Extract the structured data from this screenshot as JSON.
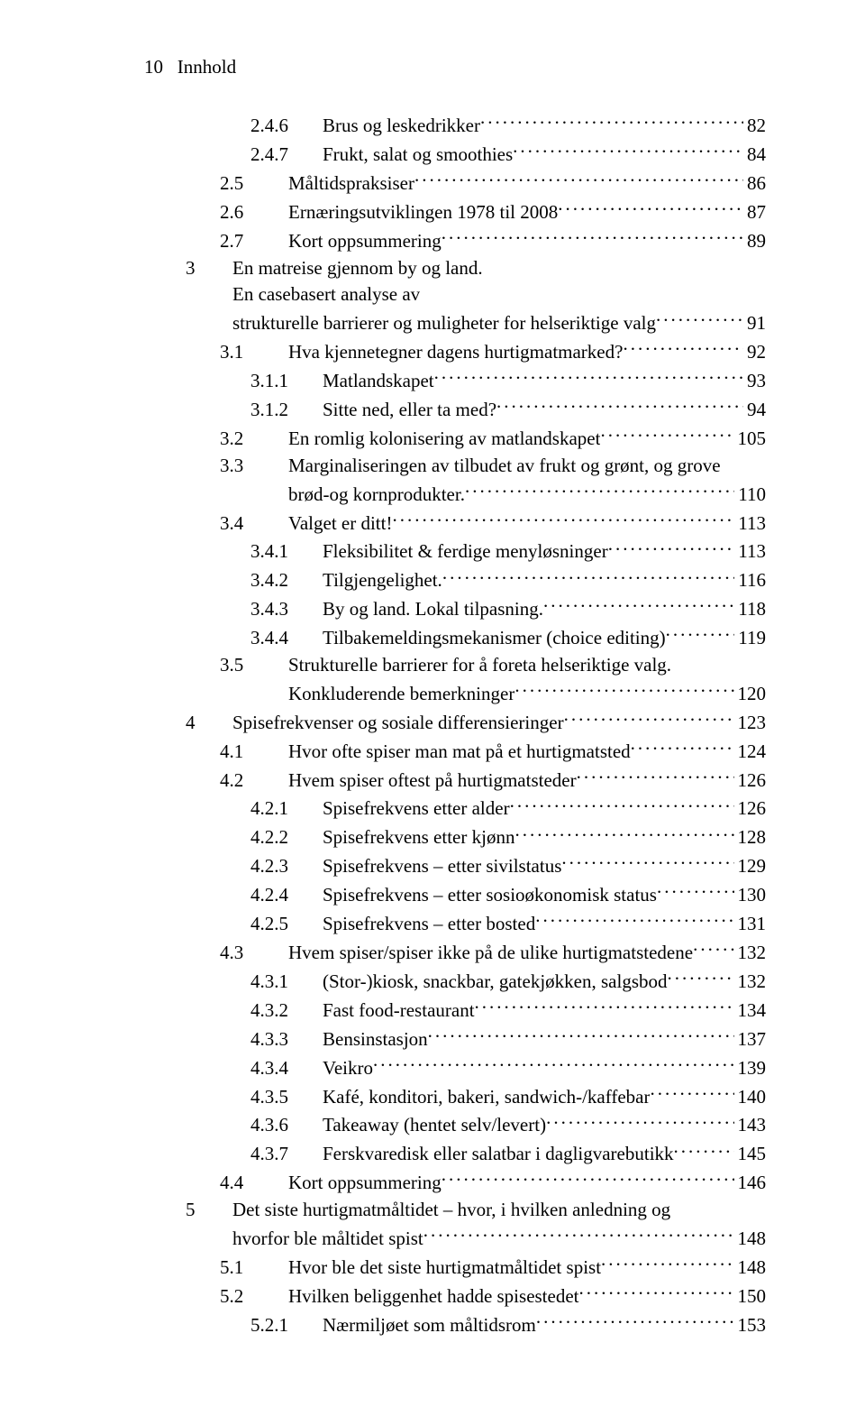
{
  "header": {
    "pageNum": "10",
    "title": "Innhold"
  },
  "indent": {
    "level1_num_pad": 46,
    "level1_num_width": 52,
    "level2_num_pad": 84,
    "level2_num_width": 76,
    "level3_num_pad": 118,
    "level3_num_width": 80
  },
  "fontsize": 21,
  "colors": {
    "text": "#000000",
    "bg": "#ffffff"
  },
  "entries": [
    {
      "lvl": 3,
      "num": "2.4.6",
      "label": "Brus og leskedrikker",
      "page": "82"
    },
    {
      "lvl": 3,
      "num": "2.4.7",
      "label": "Frukt, salat og smoothies",
      "page": "84"
    },
    {
      "lvl": 2,
      "num": "2.5",
      "label": "Måltidspraksiser",
      "page": "86"
    },
    {
      "lvl": 2,
      "num": "2.6",
      "label": "Ernæringsutviklingen 1978 til 2008",
      "page": "87"
    },
    {
      "lvl": 2,
      "num": "2.7",
      "label": "Kort oppsummering",
      "page": "89"
    },
    {
      "lvl": 1,
      "num": "3",
      "label_lines": [
        "En matreise gjennom by og land.",
        "En casebasert analyse av",
        "strukturelle barrierer og muligheter for helseriktige valg"
      ],
      "page": "91"
    },
    {
      "lvl": 2,
      "num": "3.1",
      "label": "Hva kjennetegner dagens hurtigmatmarked?",
      "page": "92"
    },
    {
      "lvl": 3,
      "num": "3.1.1",
      "label": "Matlandskapet",
      "page": "93"
    },
    {
      "lvl": 3,
      "num": "3.1.2",
      "label": "Sitte ned, eller ta med?",
      "page": "94"
    },
    {
      "lvl": 2,
      "num": "3.2",
      "label": "En romlig kolonisering av matlandskapet",
      "page": "105"
    },
    {
      "lvl": 2,
      "num": "3.3",
      "label_lines": [
        "Marginaliseringen av tilbudet av frukt og grønt, og grove",
        "brød-og kornprodukter."
      ],
      "page": "110"
    },
    {
      "lvl": 2,
      "num": "3.4",
      "label": "Valget er ditt!",
      "page": "113"
    },
    {
      "lvl": 3,
      "num": "3.4.1",
      "label": "Fleksibilitet & ferdige menyløsninger",
      "page": "113"
    },
    {
      "lvl": 3,
      "num": "3.4.2",
      "label": "Tilgjengelighet.",
      "page": "116"
    },
    {
      "lvl": 3,
      "num": "3.4.3",
      "label": "By og land. Lokal tilpasning.",
      "page": "118"
    },
    {
      "lvl": 3,
      "num": "3.4.4",
      "label": "Tilbakemeldingsmekanismer (choice editing)",
      "page": "119"
    },
    {
      "lvl": 2,
      "num": "3.5",
      "label_lines": [
        "Strukturelle barrierer for å foreta helseriktige valg.",
        "Konkluderende bemerkninger"
      ],
      "page": "120"
    },
    {
      "lvl": 1,
      "num": "4",
      "label": "Spisefrekvenser og sosiale differensieringer",
      "page": "123"
    },
    {
      "lvl": 2,
      "num": "4.1",
      "label": "Hvor ofte spiser man mat på et hurtigmatsted",
      "page": "124"
    },
    {
      "lvl": 2,
      "num": "4.2",
      "label": "Hvem spiser oftest på hurtigmatsteder",
      "page": "126"
    },
    {
      "lvl": 3,
      "num": "4.2.1",
      "label": "Spisefrekvens etter alder",
      "page": "126"
    },
    {
      "lvl": 3,
      "num": "4.2.2",
      "label": "Spisefrekvens etter kjønn",
      "page": "128"
    },
    {
      "lvl": 3,
      "num": "4.2.3",
      "label": "Spisefrekvens – etter sivilstatus",
      "page": "129"
    },
    {
      "lvl": 3,
      "num": "4.2.4",
      "label": "Spisefrekvens – etter sosioøkonomisk status",
      "page": "130"
    },
    {
      "lvl": 3,
      "num": "4.2.5",
      "label": "Spisefrekvens – etter bosted",
      "page": "131"
    },
    {
      "lvl": 2,
      "num": "4.3",
      "label": "Hvem spiser/spiser ikke på de ulike hurtigmatstedene",
      "page": "132"
    },
    {
      "lvl": 3,
      "num": "4.3.1",
      "label": "(Stor-)kiosk, snackbar, gatekjøkken, salgsbod",
      "page": "132"
    },
    {
      "lvl": 3,
      "num": "4.3.2",
      "label": "Fast food-restaurant",
      "page": "134"
    },
    {
      "lvl": 3,
      "num": "4.3.3",
      "label": "Bensinstasjon",
      "page": "137"
    },
    {
      "lvl": 3,
      "num": "4.3.4",
      "label": "Veikro",
      "page": "139"
    },
    {
      "lvl": 3,
      "num": "4.3.5",
      "label": "Kafé, konditori, bakeri, sandwich-/kaffebar",
      "page": "140"
    },
    {
      "lvl": 3,
      "num": "4.3.6",
      "label": "Takeaway (hentet selv/levert)",
      "page": "143"
    },
    {
      "lvl": 3,
      "num": "4.3.7",
      "label": "Ferskvaredisk eller salatbar i dagligvarebutikk",
      "page": "145"
    },
    {
      "lvl": 2,
      "num": "4.4",
      "label": "Kort oppsummering",
      "page": "146"
    },
    {
      "lvl": 1,
      "num": "5",
      "label_lines": [
        "Det siste hurtigmatmåltidet – hvor, i hvilken anledning og",
        "hvorfor ble måltidet spist"
      ],
      "page": "148"
    },
    {
      "lvl": 2,
      "num": "5.1",
      "label": "Hvor ble det siste hurtigmatmåltidet spist",
      "page": "148"
    },
    {
      "lvl": 2,
      "num": "5.2",
      "label": "Hvilken beliggenhet hadde spisestedet",
      "page": "150"
    },
    {
      "lvl": 3,
      "num": "5.2.1",
      "label": "Nærmiljøet som måltidsrom",
      "page": "153"
    }
  ]
}
